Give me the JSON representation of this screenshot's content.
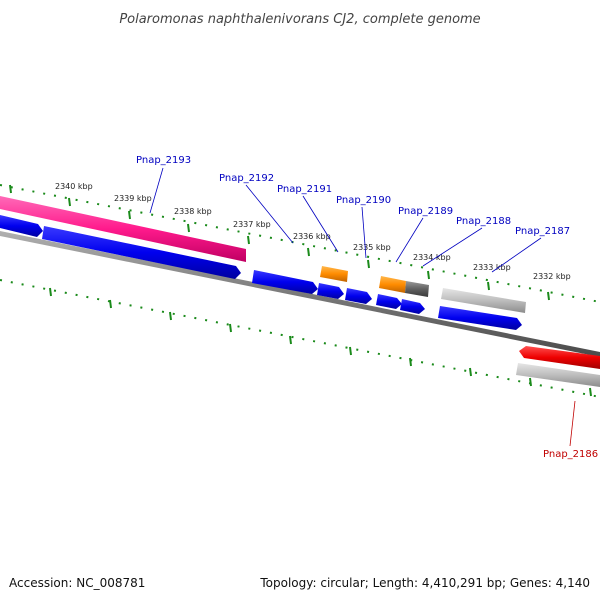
{
  "title": "Polaromonas naphthalenivorans CJ2, complete genome",
  "footer": {
    "accession": "Accession: NC_008781",
    "stats": "Topology: circular; Length: 4,410,291 bp; Genes: 4,140"
  },
  "colors": {
    "background": "#ffffff",
    "backbone": "#7a7a7a",
    "ticks": "#1a8a1a",
    "label_blue": "#0000c0",
    "label_red": "#c00000",
    "gene_blue": "#0000ee",
    "gene_pink": "#ff1a8c",
    "gene_orange": "#ff8c00",
    "gene_gray": "#b8b8b8",
    "gene_dark": "#606060",
    "gene_red": "#ee0000"
  },
  "scale": {
    "ticks": [
      {
        "bp": 2340000,
        "label": "2340 kbp"
      },
      {
        "bp": 2339000,
        "label": "2339 kbp"
      },
      {
        "bp": 2338000,
        "label": "2338 kbp"
      },
      {
        "bp": 2337000,
        "label": "2337 kbp"
      },
      {
        "bp": 2336000,
        "label": "2336 kbp"
      },
      {
        "bp": 2335000,
        "label": "2335 kbp"
      },
      {
        "bp": 2334000,
        "label": "2334 kbp"
      },
      {
        "bp": 2333000,
        "label": "2333 kbp"
      },
      {
        "bp": 2332000,
        "label": "2332 kbp"
      }
    ]
  },
  "gene_labels": [
    {
      "text": "Pnap_2193",
      "color": "label_blue"
    },
    {
      "text": "Pnap_2192",
      "color": "label_blue"
    },
    {
      "text": "Pnap_2191",
      "color": "label_blue"
    },
    {
      "text": "Pnap_2190",
      "color": "label_blue"
    },
    {
      "text": "Pnap_2189",
      "color": "label_blue"
    },
    {
      "text": "Pnap_2188",
      "color": "label_blue"
    },
    {
      "text": "Pnap_2187",
      "color": "label_blue"
    },
    {
      "text": "Pnap_2186",
      "color": "label_red"
    }
  ]
}
